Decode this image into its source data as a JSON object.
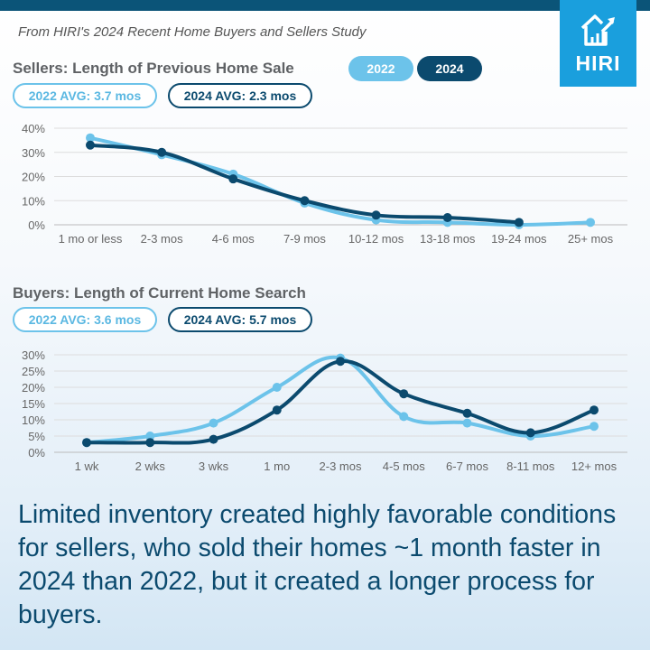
{
  "header": {
    "subtitle": "From HIRI's 2024 Recent Home Buyers and Sellers Study",
    "logo_text": "HIRI",
    "logo_icon": "house-chart-icon"
  },
  "legend": {
    "label_2022": "2022",
    "label_2024": "2024"
  },
  "colors": {
    "series_2022": "#6cc3ea",
    "series_2024": "#0b4a6e",
    "brand": "#1a9fdd",
    "grid": "#dddddd"
  },
  "sellers": {
    "title": "Sellers: Length of Previous Home Sale",
    "avg_2022": "2022 AVG: 3.7 mos",
    "avg_2024": "2024 AVG: 2.3 mos"
  },
  "buyers": {
    "title": "Buyers: Length of Current Home Search",
    "avg_2022": "2022 AVG: 3.6 mos",
    "avg_2024": "2024 AVG: 5.7 mos"
  },
  "tagline": "Limited inventory created highly favorable conditions for sellers, who sold their homes ~1 month faster in 2024 than 2022, but it created a longer process for buyers.",
  "chart_data": [
    {
      "type": "line",
      "title": "Sellers: Length of Previous Home Sale",
      "xlabel": "",
      "ylabel": "",
      "categories": [
        "1 mo or less",
        "2-3 mos",
        "4-6 mos",
        "7-9 mos",
        "10-12 mos",
        "13-18 mos",
        "19-24 mos",
        "25+ mos"
      ],
      "yticks": [
        "0%",
        "10%",
        "20%",
        "30%",
        "40%"
      ],
      "ylim": [
        0,
        40
      ],
      "grid": true,
      "legend": "top",
      "series": [
        {
          "name": "2022",
          "values": [
            36,
            29,
            21,
            9,
            2,
            1,
            0,
            1
          ]
        },
        {
          "name": "2024",
          "values": [
            33,
            30,
            19,
            10,
            4,
            3,
            1,
            null
          ]
        }
      ]
    },
    {
      "type": "line",
      "title": "Buyers: Length of Current Home Search",
      "xlabel": "",
      "ylabel": "",
      "categories": [
        "1 wk",
        "2 wks",
        "3 wks",
        "1 mo",
        "2-3 mos",
        "4-5 mos",
        "6-7 mos",
        "8-11 mos",
        "12+ mos"
      ],
      "yticks": [
        "0%",
        "5%",
        "10%",
        "15%",
        "20%",
        "25%",
        "30%"
      ],
      "ylim": [
        0,
        30
      ],
      "grid": true,
      "legend": "top",
      "series": [
        {
          "name": "2022",
          "values": [
            3,
            5,
            9,
            20,
            29,
            11,
            9,
            5,
            8
          ]
        },
        {
          "name": "2024",
          "values": [
            3,
            3,
            4,
            13,
            28,
            18,
            12,
            6,
            13
          ]
        }
      ]
    }
  ]
}
